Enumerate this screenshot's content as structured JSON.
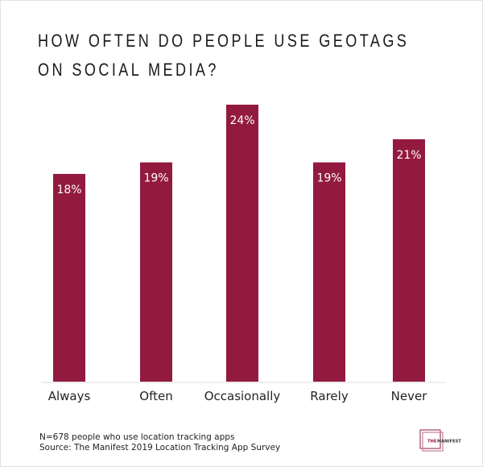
{
  "chart_data": {
    "type": "bar",
    "title": "HOW OFTEN DO PEOPLE USE GEOTAGS ON SOCIAL MEDIA?",
    "title_lines": [
      "HOW OFTEN DO PEOPLE USE GEOTAGS",
      "ON SOCIAL MEDIA?"
    ],
    "categories": [
      "Always",
      "Often",
      "Occasionally",
      "Rarely",
      "Never"
    ],
    "values": [
      18,
      19,
      24,
      19,
      21
    ],
    "data_labels": [
      "18%",
      "19%",
      "24%",
      "19%",
      "21%"
    ],
    "unit": "%",
    "ylim": [
      0,
      24
    ],
    "grid": false,
    "bar_color": "#931a3f",
    "xlabel": "",
    "ylabel": ""
  },
  "footer": {
    "note": "N=678 people who use location tracking apps",
    "source": "Source: The Manifest 2019 Location Tracking App Survey"
  },
  "logo": {
    "text_accent": "THE",
    "text_main": "MANIFEST",
    "color": "#931a3f"
  }
}
